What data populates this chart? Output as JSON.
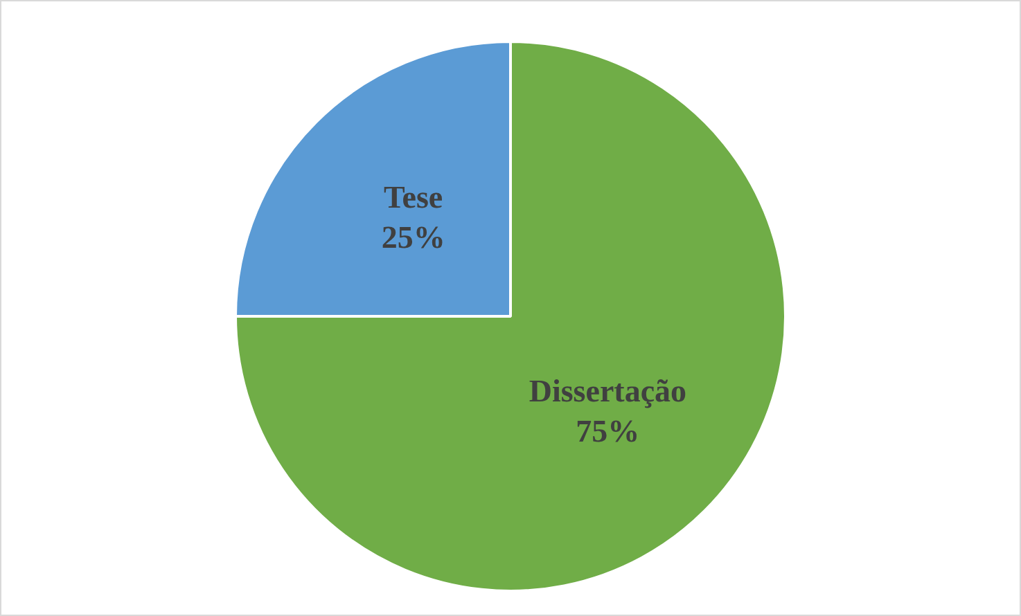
{
  "chart_data": {
    "type": "pie",
    "categories": [
      "Dissertação",
      "Tese"
    ],
    "values": [
      75,
      25
    ],
    "colors": [
      "#70ad47",
      "#5b9bd5"
    ],
    "value_labels": [
      "75%",
      "25%"
    ],
    "legend": false
  }
}
